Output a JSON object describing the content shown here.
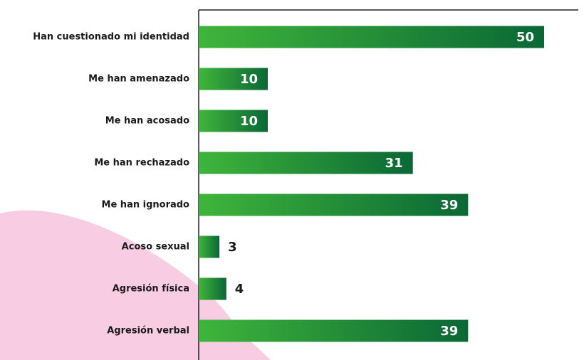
{
  "chart_data": {
    "type": "bar",
    "orientation": "horizontal",
    "categories": [
      "Han cuestionado mi identidad",
      "Me han amenazado",
      "Me han acosado",
      "Me han rechazado",
      "Me han ignorado",
      "Acoso sexual",
      "Agresión física",
      "Agresión verbal"
    ],
    "values": [
      50,
      10,
      10,
      31,
      39,
      3,
      4,
      39
    ],
    "colors": [
      "#3fb53b",
      "#0a6835"
    ]
  }
}
